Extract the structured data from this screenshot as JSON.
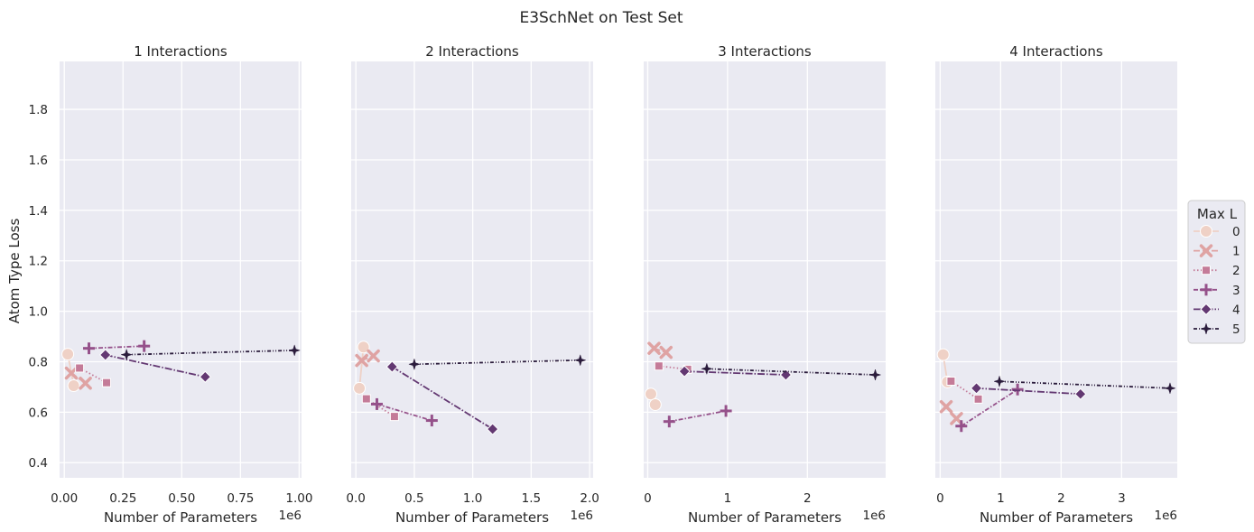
{
  "title": "E3SchNet on Test Set",
  "ylabel": "Atom Type Loss",
  "legend": {
    "title": "Max L",
    "entries": [
      "0",
      "1",
      "2",
      "3",
      "4",
      "5"
    ],
    "placement": "center-right"
  },
  "colors": {
    "background": "#eaeaf2",
    "grid": "#ffffff",
    "series": [
      "#efd1c6",
      "#dfa3a3",
      "#c47b98",
      "#95518a",
      "#633872",
      "#2b1c3c"
    ]
  },
  "chart_data": [
    {
      "type": "line",
      "title": "1 Interactions",
      "xlabel": "Number of Parameters",
      "ylabel": "Atom Type Loss",
      "x_offset_label": "1e6",
      "xlim": [
        -0.02,
        1.01
      ],
      "ylim": [
        0.34,
        1.99
      ],
      "xticks": [
        0.0,
        0.25,
        0.5,
        0.75,
        1.0
      ],
      "xtick_labels": [
        "0.00",
        "0.25",
        "0.50",
        "0.75",
        "1.00"
      ],
      "yticks": [
        0.4,
        0.6,
        0.8,
        1.0,
        1.2,
        1.4,
        1.6,
        1.8
      ],
      "ytick_labels": [
        "0.4",
        "0.6",
        "0.8",
        "1.0",
        "1.2",
        "1.4",
        "1.6",
        "1.8"
      ],
      "grid": true,
      "series": [
        {
          "name": "0",
          "x": [
            0.015,
            0.04
          ],
          "y": [
            0.83,
            0.705
          ]
        },
        {
          "name": "1",
          "x": [
            0.03,
            0.09
          ],
          "y": [
            0.755,
            0.715
          ]
        },
        {
          "name": "2",
          "x": [
            0.065,
            0.18
          ],
          "y": [
            0.775,
            0.717
          ]
        },
        {
          "name": "3",
          "x": [
            0.105,
            0.34
          ],
          "y": [
            0.853,
            0.862
          ]
        },
        {
          "name": "4",
          "x": [
            0.175,
            0.6
          ],
          "y": [
            0.827,
            0.74
          ]
        },
        {
          "name": "5",
          "x": [
            0.265,
            0.98
          ],
          "y": [
            0.828,
            0.845
          ]
        }
      ]
    },
    {
      "type": "line",
      "title": "2 Interactions",
      "xlabel": "Number of Parameters",
      "ylabel": "",
      "x_offset_label": "1e6",
      "xlim": [
        -0.04,
        2.03
      ],
      "ylim": [
        0.34,
        1.99
      ],
      "xticks": [
        0.0,
        0.5,
        1.0,
        1.5,
        2.0
      ],
      "xtick_labels": [
        "0.0",
        "0.5",
        "1.0",
        "1.5",
        "2.0"
      ],
      "yticks": [
        0.4,
        0.6,
        0.8,
        1.0,
        1.2,
        1.4,
        1.6,
        1.8
      ],
      "ytick_labels": [],
      "grid": true,
      "series": [
        {
          "name": "0",
          "x": [
            0.065,
            0.03
          ],
          "y": [
            0.858,
            0.695
          ]
        },
        {
          "name": "1",
          "x": [
            0.05,
            0.15
          ],
          "y": [
            0.805,
            0.823
          ]
        },
        {
          "name": "2",
          "x": [
            0.09,
            0.33
          ],
          "y": [
            0.653,
            0.583
          ]
        },
        {
          "name": "3",
          "x": [
            0.18,
            0.65
          ],
          "y": [
            0.632,
            0.567
          ]
        },
        {
          "name": "4",
          "x": [
            0.31,
            1.17
          ],
          "y": [
            0.78,
            0.533
          ]
        },
        {
          "name": "5",
          "x": [
            0.5,
            1.92
          ],
          "y": [
            0.79,
            0.806
          ]
        }
      ]
    },
    {
      "type": "line",
      "title": "3 Interactions",
      "xlabel": "Number of Parameters",
      "ylabel": "",
      "x_offset_label": "1e6",
      "xlim": [
        -0.05,
        2.98
      ],
      "ylim": [
        0.34,
        1.99
      ],
      "xticks": [
        0,
        1,
        2
      ],
      "xtick_labels": [
        "0",
        "1",
        "2"
      ],
      "yticks": [
        0.4,
        0.6,
        0.8,
        1.0,
        1.2,
        1.4,
        1.6,
        1.8
      ],
      "ytick_labels": [],
      "grid": true,
      "series": [
        {
          "name": "0",
          "x": [
            0.04,
            0.095
          ],
          "y": [
            0.672,
            0.63
          ]
        },
        {
          "name": "1",
          "x": [
            0.08,
            0.23
          ],
          "y": [
            0.853,
            0.837
          ]
        },
        {
          "name": "2",
          "x": [
            0.14,
            0.5
          ],
          "y": [
            0.783,
            0.77
          ]
        },
        {
          "name": "3",
          "x": [
            0.27,
            0.98
          ],
          "y": [
            0.563,
            0.605
          ]
        },
        {
          "name": "4",
          "x": [
            0.46,
            1.73
          ],
          "y": [
            0.762,
            0.748
          ]
        },
        {
          "name": "5",
          "x": [
            0.74,
            2.85
          ],
          "y": [
            0.772,
            0.748
          ]
        }
      ]
    },
    {
      "type": "line",
      "title": "4 Interactions",
      "xlabel": "Number of Parameters",
      "ylabel": "",
      "x_offset_label": "1e6",
      "xlim": [
        -0.08,
        3.92
      ],
      "ylim": [
        0.34,
        1.99
      ],
      "xticks": [
        0,
        1,
        2,
        3
      ],
      "xtick_labels": [
        "0",
        "1",
        "2",
        "3"
      ],
      "yticks": [
        0.4,
        0.6,
        0.8,
        1.0,
        1.2,
        1.4,
        1.6,
        1.8
      ],
      "ytick_labels": [],
      "grid": true,
      "series": [
        {
          "name": "0",
          "x": [
            0.05,
            0.12
          ],
          "y": [
            0.828,
            0.72
          ]
        },
        {
          "name": "1",
          "x": [
            0.1,
            0.27
          ],
          "y": [
            0.622,
            0.575
          ]
        },
        {
          "name": "2",
          "x": [
            0.18,
            0.63
          ],
          "y": [
            0.723,
            0.652
          ]
        },
        {
          "name": "3",
          "x": [
            0.35,
            1.28
          ],
          "y": [
            0.545,
            0.69
          ]
        },
        {
          "name": "4",
          "x": [
            0.6,
            2.32
          ],
          "y": [
            0.695,
            0.672
          ]
        },
        {
          "name": "5",
          "x": [
            0.98,
            3.8
          ],
          "y": [
            0.722,
            0.695
          ]
        }
      ]
    }
  ]
}
